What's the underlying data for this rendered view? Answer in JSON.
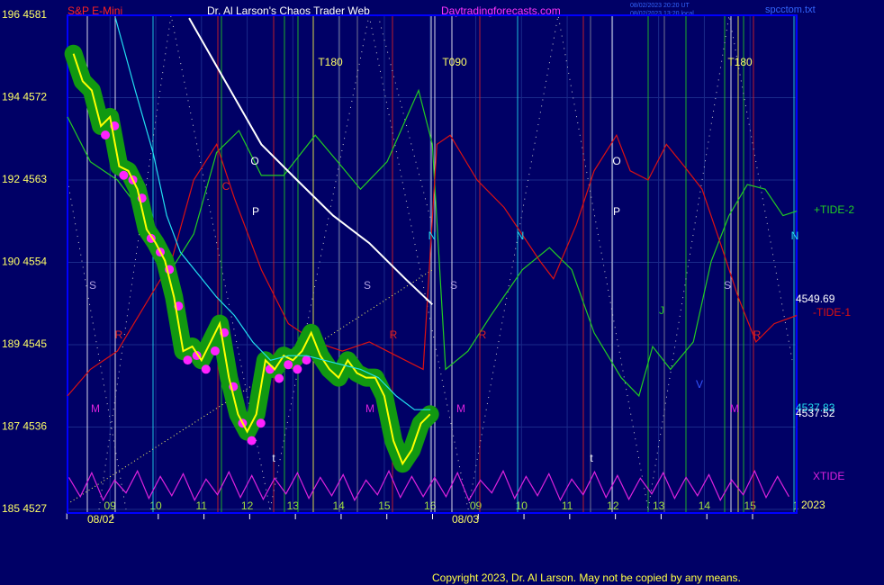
{
  "chart_data": {
    "type": "line",
    "title": "Dr. Al Larson's Chaos Trader Web",
    "symbol": "S&P E-Mini",
    "site": "Daytradingforecasts.com",
    "timestamp_ut": "08/02/2023 20:20 UT",
    "timestamp_local": "08/02/2023 13:20 local",
    "file": "spcctom.txt",
    "copyright": "Copyright 2023, Dr. Al Larson. May not be copied by any means.",
    "year": "2023",
    "x_dates": [
      "08/02",
      "08/03"
    ],
    "xlim": [
      8.07,
      24.02
    ],
    "xticks": [
      {
        "value": 9,
        "label": "09"
      },
      10,
      11,
      12,
      13,
      14,
      15,
      16,
      {
        "value": 17,
        "label": "09"
      },
      {
        "value": 18,
        "label": "10"
      },
      {
        "value": 19,
        "label": "11"
      },
      {
        "value": 20,
        "label": "12"
      },
      {
        "value": 21,
        "label": "13"
      },
      {
        "value": 22,
        "label": "14"
      },
      {
        "value": 23,
        "label": "15"
      },
      {
        "value": 24,
        "label": "1"
      }
    ],
    "ylim": [
      4527,
      4581
    ],
    "yticks": [
      {
        "value": 4581,
        "label": "196 4581"
      },
      {
        "value": 4572,
        "label": "194 4572"
      },
      {
        "value": 4563,
        "label": "192 4563"
      },
      {
        "value": 4554,
        "label": "190 4554"
      },
      {
        "value": 4545,
        "label": "189 4545"
      },
      {
        "value": 4536,
        "label": "187 4536"
      },
      {
        "value": 4527,
        "label": "185 4527"
      }
    ],
    "grid": true,
    "series": [
      {
        "color": "#ffff00",
        "halo": "#119911",
        "dots": "#ff22ff",
        "x": [
          8.2,
          8.4,
          8.6,
          8.8,
          9,
          9.2,
          9.4,
          9.6,
          9.8,
          10,
          10.2,
          10.4,
          10.6,
          10.8,
          11,
          11.2,
          11.4,
          11.6,
          11.8,
          12,
          12.2,
          12.4,
          12.6,
          12.8,
          13,
          13.2,
          13.4,
          13.6,
          13.8,
          14,
          14.2,
          14.4,
          14.6,
          14.8,
          15,
          15.2,
          15.4,
          15.6,
          15.8,
          16
        ],
        "values": [
          4576.8,
          4573.8,
          4572.8,
          4568.9,
          4569.9,
          4564.5,
          4564.0,
          4562.0,
          4557.6,
          4556.1,
          4554.2,
          4550.2,
          4544.3,
          4544.8,
          4543.3,
          4545.3,
          4547.3,
          4541.4,
          4537.4,
          4535.5,
          4537.4,
          4543.3,
          4542.3,
          4543.8,
          4543.3,
          4544.3,
          4546.3,
          4543.8,
          4542.3,
          4541.4,
          4543.3,
          4541.9,
          4541.4,
          4541.4,
          4539.4,
          4534.5,
          4532.0,
          4533.5,
          4536.4,
          4537.4
        ]
      },
      {
        "color": "#22e0f0",
        "x": [
          9.12,
          9.55,
          9.94,
          10.24,
          10.54,
          10.93,
          11.33,
          11.72,
          12.12,
          12.51,
          12.9,
          13.3,
          13.69,
          14.09,
          14.48,
          14.87,
          15.26,
          15.66,
          16.01
        ],
        "values": [
          4580.7,
          4572.8,
          4566.0,
          4559.1,
          4555.1,
          4552.7,
          4550.2,
          4548.2,
          4545.3,
          4543.3,
          4543.8,
          4543.8,
          4543.3,
          4542.8,
          4542.3,
          4541.4,
          4539.4,
          4537.9,
          4537.9
        ]
      },
      {
        "color": "#ffffff",
        "x": [
          10.73,
          11.52,
          12.31,
          13.09,
          13.88,
          14.67,
          15.46,
          16.05
        ],
        "values": [
          4580.7,
          4573.8,
          4566.9,
          4563.0,
          4559.1,
          4556.1,
          4552.2,
          4549.4
        ]
      },
      {
        "name": "+TIDE-2",
        "color": "#22cc22",
        "x": [
          8.07,
          8.57,
          9.16,
          9.75,
          10.34,
          10.83,
          11.33,
          11.82,
          12.31,
          12.8,
          13.49,
          13.98,
          14.48,
          15.06,
          15.75,
          16.05,
          16.34,
          16.83,
          17.33,
          18.02,
          18.61,
          19.1,
          19.59,
          20.18,
          20.57,
          20.87,
          21.26,
          21.76,
          22.15,
          22.54,
          22.94,
          23.33,
          23.72,
          24.02
        ],
        "values": [
          4569.9,
          4565.0,
          4563.0,
          4559.1,
          4553.2,
          4557.1,
          4566.0,
          4568.4,
          4563.5,
          4563.5,
          4567.9,
          4565.0,
          4562.0,
          4565.0,
          4572.8,
          4566.9,
          4542.3,
          4544.3,
          4548.2,
          4553.2,
          4555.6,
          4553.2,
          4546.3,
          4541.4,
          4539.4,
          4544.8,
          4542.3,
          4545.3,
          4554.1,
          4559.1,
          4562.5,
          4562.0,
          4559.1,
          4559.6
        ]
      },
      {
        "name": "-TIDE-1",
        "color": "#dd1111",
        "x": [
          8.07,
          8.57,
          9.16,
          9.75,
          10.34,
          10.83,
          11.33,
          11.72,
          12.31,
          12.9,
          13.49,
          14.08,
          14.67,
          15.26,
          15.85,
          16.15,
          16.44,
          17.03,
          17.62,
          18.41,
          18.7,
          19.2,
          19.59,
          20.08,
          20.38,
          20.77,
          21.17,
          21.56,
          21.95,
          22.35,
          22.74,
          23.13,
          23.53,
          24.02
        ],
        "values": [
          4539.4,
          4542.3,
          4544.3,
          4549.2,
          4554.1,
          4563.0,
          4566.9,
          4561.0,
          4553.2,
          4547.3,
          4545.3,
          4544.3,
          4545.3,
          4543.8,
          4542.3,
          4566.9,
          4567.9,
          4563.0,
          4560.0,
          4554.1,
          4552.2,
          4558.1,
          4564.0,
          4567.9,
          4564.0,
          4563.0,
          4566.9,
          4564.5,
          4562.0,
          4556.1,
          4550.2,
          4545.3,
          4547.3,
          4548.2
        ]
      },
      {
        "name": "XTIDE",
        "color": "#dd22dd",
        "x": [
          8.1,
          8.35,
          8.6,
          8.85,
          9.1,
          9.35,
          9.6,
          9.85,
          10.1,
          10.35,
          10.6,
          10.85,
          11.1,
          11.35,
          11.6,
          11.85,
          12.1,
          12.35,
          12.6,
          12.85,
          13.1,
          13.35,
          13.6,
          13.85,
          14.1,
          14.35,
          14.6,
          14.85,
          15.1,
          15.35,
          15.6,
          15.85,
          16.1,
          16.35,
          16.6,
          16.85,
          17.1,
          17.35,
          17.6,
          17.85,
          18.1,
          18.35,
          18.6,
          18.85,
          19.1,
          19.35,
          19.6,
          19.85,
          20.1,
          20.35,
          20.6,
          20.85,
          21.1,
          21.35,
          21.6,
          21.85,
          22.1,
          22.35,
          22.6,
          22.85,
          23.1,
          23.35,
          23.6,
          23.85
        ],
        "values": [
          4530.5,
          4528.4,
          4531.0,
          4528.0,
          4530.2,
          4528.8,
          4531.2,
          4528.2,
          4530.6,
          4528.5,
          4530.9,
          4528.0,
          4530.3,
          4528.6,
          4531.1,
          4528.3,
          4530.7,
          4528.1,
          4530.4,
          4528.7,
          4531.0,
          4528.2,
          4530.5,
          4528.5,
          4530.8,
          4528.0,
          4530.2,
          4528.6,
          4531.2,
          4528.3,
          4530.6,
          4528.4,
          4530.5,
          4528.4,
          4531.0,
          4528.0,
          4530.2,
          4528.8,
          4531.2,
          4528.2,
          4530.6,
          4528.5,
          4530.9,
          4528.0,
          4530.3,
          4528.6,
          4531.1,
          4528.3,
          4530.7,
          4528.1,
          4530.4,
          4528.7,
          4531.0,
          4528.2,
          4530.5,
          4528.5,
          4530.8,
          4528.0,
          4530.2,
          4528.6,
          4531.2,
          4528.3,
          4530.6,
          4528.4
        ]
      }
    ],
    "price_labels": [
      {
        "text": "4549.69",
        "color": "#ffffff"
      },
      {
        "text": "4537.83",
        "color": "#22e0f0"
      },
      {
        "text": "4537.52",
        "color": "#ffffff"
      }
    ],
    "annotations": [
      {
        "text": "T180",
        "color": "#ffff66"
      },
      {
        "text": "T090",
        "color": "#ffff66"
      },
      {
        "text": "T180",
        "color": "#ffff66"
      },
      {
        "text": "O",
        "color": "#ffffff"
      },
      {
        "text": "O",
        "color": "#ffffff"
      },
      {
        "text": "P",
        "color": "#ffffff"
      },
      {
        "text": "P",
        "color": "#ffffff"
      },
      {
        "text": "C",
        "color": "#dd2222"
      },
      {
        "text": "N",
        "color": "#22e0f0"
      },
      {
        "text": "N",
        "color": "#22e0f0"
      },
      {
        "text": "N",
        "color": "#22e0f0"
      },
      {
        "text": "S",
        "color": "#b0a0e0"
      },
      {
        "text": "S",
        "color": "#b0a0e0"
      },
      {
        "text": "S",
        "color": "#b0a0e0"
      },
      {
        "text": "S",
        "color": "#b0a0e0"
      },
      {
        "text": "R",
        "color": "#dd2222"
      },
      {
        "text": "R",
        "color": "#dd2222"
      },
      {
        "text": "R",
        "color": "#dd2222"
      },
      {
        "text": "R",
        "color": "#dd2222"
      },
      {
        "text": "M",
        "color": "#dd22dd"
      },
      {
        "text": "M",
        "color": "#dd22dd"
      },
      {
        "text": "M",
        "color": "#dd22dd"
      },
      {
        "text": "M",
        "color": "#dd22dd"
      },
      {
        "text": "t",
        "color": "#ffffff"
      },
      {
        "text": "t",
        "color": "#ffffff"
      },
      {
        "text": "J",
        "color": "#22cc22"
      },
      {
        "text": "V",
        "color": "#3355ff"
      }
    ]
  }
}
